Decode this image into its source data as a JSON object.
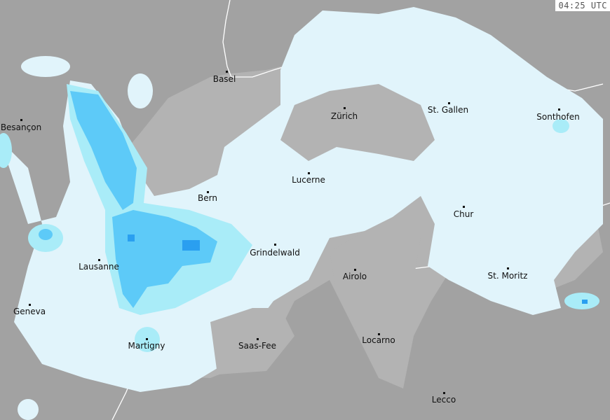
{
  "timestamp": "04:25 UTC",
  "colors": {
    "background_outside": "#a2a2a2",
    "background_switzerland": "#b3b3b3",
    "border": "#ffffff",
    "precip_light": "#e1f4fb",
    "precip_moderate": "#a9ecf8",
    "precip_heavy": "#5dcaf8",
    "precip_very_heavy": "#2a9ff0"
  },
  "cities": [
    {
      "name": "Basel"
    },
    {
      "name": "Zürich"
    },
    {
      "name": "St. Gallen"
    },
    {
      "name": "Sonthofen"
    },
    {
      "name": "Besançon"
    },
    {
      "name": "Lucerne"
    },
    {
      "name": "Bern"
    },
    {
      "name": "Chur"
    },
    {
      "name": "Grindelwald"
    },
    {
      "name": "Lausanne"
    },
    {
      "name": "St. Moritz"
    },
    {
      "name": "Airolo"
    },
    {
      "name": "Geneva"
    },
    {
      "name": "Martigny"
    },
    {
      "name": "Saas-Fee"
    },
    {
      "name": "Locarno"
    },
    {
      "name": "Lecco"
    }
  ]
}
